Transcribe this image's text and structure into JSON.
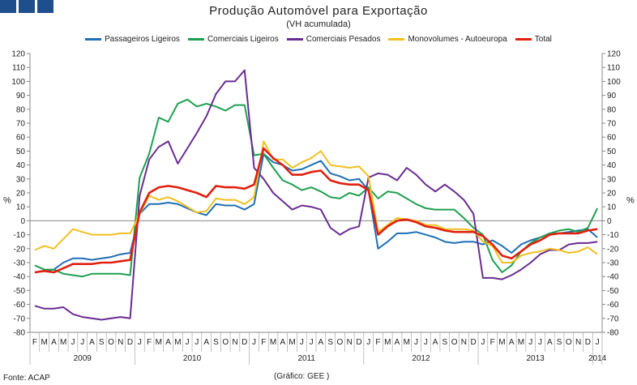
{
  "title": "Produção Automóvel para Exportação",
  "subtitle": "(VH acumulada)",
  "source": "Fonte: ACAP",
  "credit": "(Gráfico: GEE )",
  "chart_data": {
    "type": "line",
    "ylabel": "%",
    "ylabel_right": "%",
    "ylim": [
      -80,
      120
    ],
    "yticks": [
      -80,
      -70,
      -60,
      -50,
      -40,
      -30,
      -20,
      -10,
      0,
      10,
      20,
      30,
      40,
      50,
      60,
      70,
      80,
      90,
      100,
      110,
      120
    ],
    "grid": false,
    "legend_position": "top",
    "month_labels": [
      "F",
      "M",
      "A",
      "M",
      "J",
      "J",
      "A",
      "S",
      "O",
      "N",
      "D",
      "J",
      "F",
      "M",
      "A",
      "M",
      "J",
      "J",
      "A",
      "S",
      "O",
      "N",
      "D",
      "J",
      "F",
      "M",
      "A",
      "M",
      "J",
      "J",
      "A",
      "S",
      "O",
      "N",
      "D",
      "J",
      "F",
      "M",
      "A",
      "M",
      "J",
      "J",
      "A",
      "S",
      "O",
      "N",
      "D",
      "J",
      "F",
      "M",
      "A",
      "M",
      "J",
      "J",
      "A",
      "S",
      "O",
      "N",
      "D",
      "J"
    ],
    "year_groups": [
      {
        "label": "2009",
        "months": 11
      },
      {
        "label": "2010",
        "months": 12
      },
      {
        "label": "2011",
        "months": 12
      },
      {
        "label": "2012",
        "months": 12
      },
      {
        "label": "2013",
        "months": 12
      },
      {
        "label": "2014",
        "months": 1
      }
    ],
    "series": [
      {
        "name": "Passageiros Ligeiros",
        "color": "#1f6fb5",
        "values": [
          -37,
          -36,
          -35,
          -30,
          -27,
          -27,
          -28,
          -27,
          -26,
          -24,
          -23,
          5,
          12,
          12,
          13,
          12,
          9,
          6,
          4,
          12,
          11,
          11,
          8,
          12,
          48,
          42,
          40,
          36,
          37,
          40,
          43,
          34,
          32,
          29,
          30,
          22,
          -20,
          -15,
          -9,
          -9,
          -8,
          -10,
          -12,
          -15,
          -16,
          -15,
          -15,
          -17,
          -14,
          -18,
          -23,
          -17,
          -14,
          -12,
          -9,
          -9,
          -8,
          -7,
          -6,
          -12
        ]
      },
      {
        "name": "Comerciais Ligeiros",
        "color": "#1fa050",
        "values": [
          -32,
          -35,
          -35,
          -38,
          -39,
          -40,
          -38,
          -38,
          -38,
          -38,
          -39,
          31,
          48,
          74,
          71,
          84,
          87,
          82,
          84,
          82,
          79,
          83,
          83,
          47,
          48,
          38,
          29,
          26,
          22,
          24,
          21,
          17,
          16,
          20,
          18,
          24,
          16,
          21,
          20,
          16,
          12,
          9,
          8,
          8,
          8,
          2,
          -5,
          -10,
          -28,
          -37,
          -32,
          -22,
          -16,
          -12,
          -9,
          -7,
          -6,
          -8,
          -5,
          9
        ]
      },
      {
        "name": "Comerciais Pesados",
        "color": "#6a2c91",
        "values": [
          -61,
          -63,
          -63,
          -62,
          -67,
          -69,
          -70,
          -71,
          -70,
          -69,
          -70,
          18,
          44,
          53,
          57,
          41,
          52,
          63,
          75,
          91,
          100,
          100,
          108,
          38,
          30,
          20,
          14,
          8,
          11,
          10,
          8,
          -5,
          -10,
          -6,
          -4,
          31,
          34,
          33,
          29,
          38,
          33,
          26,
          21,
          26,
          21,
          15,
          5,
          -41,
          -41,
          -42,
          -39,
          -35,
          -30,
          -24,
          -21,
          -21,
          -17,
          -16,
          -16,
          -15
        ]
      },
      {
        "name": "Monovolumes - Autoeuropa",
        "color": "#f0c020",
        "values": [
          -21,
          -18,
          -20,
          -13,
          -6,
          -8,
          -10,
          -10,
          -10,
          -9,
          -9,
          5,
          18,
          15,
          17,
          14,
          10,
          6,
          7,
          16,
          15,
          15,
          12,
          17,
          57,
          44,
          44,
          38,
          42,
          45,
          50,
          40,
          39,
          38,
          39,
          32,
          -8,
          -3,
          2,
          1,
          0,
          -3,
          -3,
          -6,
          -6,
          -6,
          -7,
          -15,
          -18,
          -30,
          -30,
          -25,
          -23,
          -22,
          -20,
          -21,
          -23,
          -22,
          -19,
          -24
        ]
      },
      {
        "name": "Total",
        "color": "#e02010",
        "values": [
          -37,
          -36,
          -37,
          -34,
          -31,
          -31,
          -31,
          -30,
          -30,
          -29,
          -28,
          6,
          20,
          24,
          25,
          24,
          22,
          20,
          17,
          25,
          24,
          24,
          23,
          26,
          52,
          45,
          40,
          33,
          33,
          35,
          36,
          29,
          27,
          26,
          26,
          22,
          -10,
          -4,
          0,
          1,
          -1,
          -4,
          -5,
          -7,
          -8,
          -8,
          -8,
          -11,
          -17,
          -25,
          -27,
          -22,
          -17,
          -14,
          -10,
          -9,
          -9,
          -9,
          -7,
          -6
        ]
      }
    ]
  }
}
